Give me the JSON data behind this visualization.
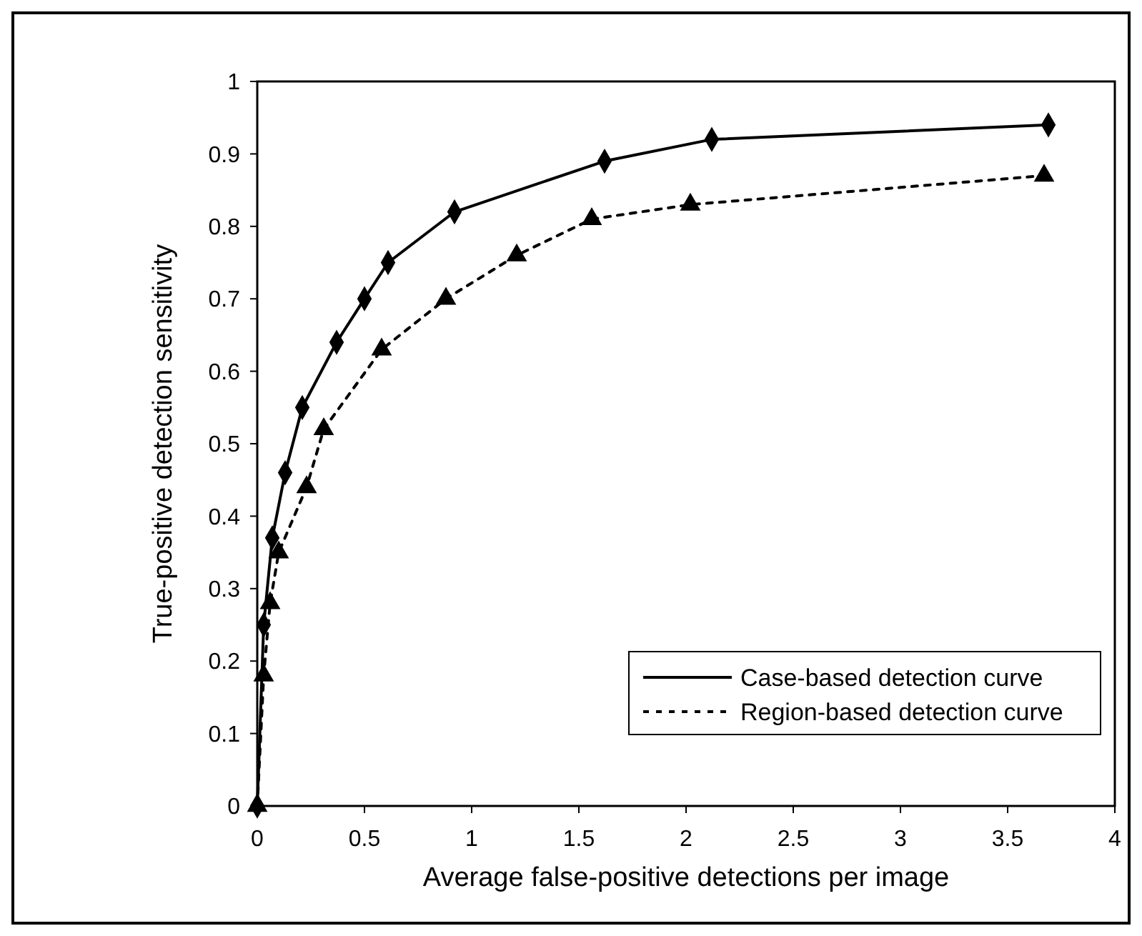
{
  "chart_data": {
    "type": "line",
    "xlabel": "Average false-positive detections per image",
    "ylabel": "True-positive detection sensitivity",
    "xlim": [
      0,
      4
    ],
    "xticks": [
      0,
      0.5,
      1,
      1.5,
      2,
      2.5,
      3,
      3.5,
      4
    ],
    "ylim": [
      0,
      1
    ],
    "yticks": [
      0,
      0.1,
      0.2,
      0.3,
      0.4,
      0.5,
      0.6,
      0.7,
      0.8,
      0.9,
      1
    ],
    "grid": false,
    "legend": "bottom right",
    "series": [
      {
        "name": "Case-based detection curve",
        "color": "#000000",
        "marker": "diamond",
        "line_style": "solid",
        "x": [
          0,
          0.03,
          0.07,
          0.13,
          0.21,
          0.37,
          0.5,
          0.61,
          0.92,
          1.62,
          2.12,
          3.69
        ],
        "values": [
          0,
          0.25,
          0.37,
          0.46,
          0.55,
          0.64,
          0.7,
          0.75,
          0.82,
          0.89,
          0.92,
          0.94
        ]
      },
      {
        "name": "Region-based detection curve",
        "color": "#000000",
        "marker": "triangle",
        "line_style": "dotted",
        "x": [
          0,
          0.03,
          0.06,
          0.1,
          0.23,
          0.31,
          0.58,
          0.88,
          1.21,
          1.56,
          2.02,
          3.67
        ],
        "values": [
          0,
          0.18,
          0.28,
          0.35,
          0.44,
          0.52,
          0.63,
          0.7,
          0.76,
          0.81,
          0.83,
          0.87
        ]
      }
    ]
  }
}
